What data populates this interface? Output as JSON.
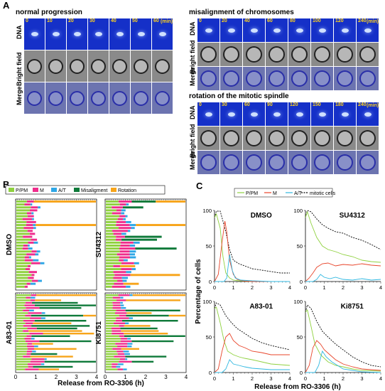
{
  "panel_a": {
    "label": "A",
    "panels": [
      {
        "title": "normal progression",
        "rows": [
          "DNA",
          "Bright field",
          "Merge"
        ],
        "times": [
          "0",
          "10",
          "20",
          "30",
          "40",
          "50",
          "60"
        ],
        "unit": "(min)"
      },
      {
        "title": "misalignment of chromosomes",
        "rows": [
          "DNA",
          "Bright field",
          "Merge"
        ],
        "times": [
          "0",
          "20",
          "40",
          "60",
          "80",
          "100",
          "120",
          "240"
        ],
        "unit": "(min)"
      },
      {
        "title": "rotation of the mitotic spindle",
        "rows": [
          "DNA",
          "Bright field",
          "Merge"
        ],
        "times": [
          "0",
          "30",
          "60",
          "90",
          "120",
          "150",
          "180",
          "240"
        ],
        "unit": "(min)"
      }
    ]
  },
  "panel_b": {
    "label": "B",
    "legend": [
      {
        "name": "P/PM",
        "color": "#8fd13f"
      },
      {
        "name": "M",
        "color": "#ef2d8c"
      },
      {
        "name": "A/T",
        "color": "#2fa7e6"
      },
      {
        "name": "Misaligment",
        "color": "#0f7a3a"
      },
      {
        "name": "Rotation",
        "color": "#f7a51b"
      }
    ],
    "conditions": [
      "DMSO",
      "SU4312",
      "A83-01",
      "Ki8751"
    ],
    "xticks": [
      "0",
      "1",
      "2",
      "3",
      "4"
    ],
    "xlabel": "Release from RO-3306 (h)"
  },
  "panel_c": {
    "label": "C",
    "legend": [
      {
        "name": "P/PM",
        "color": "#8fd13f"
      },
      {
        "name": "M",
        "color": "#e8442a"
      },
      {
        "name": "A/T",
        "color": "#2fb7e0"
      },
      {
        "name": "mitotic cells",
        "color": "#000000"
      }
    ],
    "conditions": [
      "DMSO",
      "SU4312",
      "A83-01",
      "Ki8751"
    ],
    "yticks": [
      "0",
      "50",
      "100"
    ],
    "xticks": [
      "0",
      "1",
      "2",
      "3",
      "4"
    ],
    "ylabel": "Percentage of cells",
    "xlabel": "Release from RO-3306 (h)"
  },
  "chart_data": [
    {
      "type": "line",
      "title": "DMSO",
      "xlim": [
        0,
        4
      ],
      "ylim": [
        0,
        100
      ],
      "series": [
        {
          "name": "mitotic cells",
          "x": [
            0,
            0.1,
            0.3,
            0.45,
            0.6,
            0.8,
            1.0,
            1.3,
            1.6,
            2.0,
            2.5,
            3.0,
            3.5,
            4.0
          ],
          "y": [
            90,
            99,
            99,
            85,
            70,
            45,
            30,
            25,
            22,
            18,
            16,
            14,
            12,
            12
          ]
        },
        {
          "name": "P/PM",
          "x": [
            0,
            0.1,
            0.3,
            0.45,
            0.6,
            0.8,
            1.0,
            1.3,
            2.0,
            3.0,
            4.0
          ],
          "y": [
            90,
            95,
            75,
            35,
            12,
            5,
            2,
            1,
            0,
            0,
            0
          ]
        },
        {
          "name": "M",
          "x": [
            0,
            0.2,
            0.4,
            0.55,
            0.65,
            0.8,
            1.0,
            1.2,
            1.5,
            2.0,
            3.0,
            4.0
          ],
          "y": [
            0,
            10,
            55,
            85,
            70,
            30,
            10,
            3,
            1,
            0,
            0,
            0
          ]
        },
        {
          "name": "A/T",
          "x": [
            0,
            0.5,
            0.65,
            0.8,
            0.95,
            1.1,
            1.4,
            2.0,
            3.0,
            4.0
          ],
          "y": [
            0,
            0,
            5,
            38,
            15,
            5,
            2,
            1,
            0,
            0
          ]
        }
      ]
    },
    {
      "type": "line",
      "title": "SU4312",
      "xlim": [
        0,
        4
      ],
      "ylim": [
        0,
        100
      ],
      "series": [
        {
          "name": "mitotic cells",
          "x": [
            0,
            0.1,
            0.3,
            0.6,
            0.9,
            1.2,
            1.6,
            2.0,
            2.5,
            3.0,
            3.5,
            4.0
          ],
          "y": [
            90,
            100,
            98,
            88,
            80,
            75,
            70,
            68,
            62,
            58,
            52,
            45
          ]
        },
        {
          "name": "P/PM",
          "x": [
            0,
            0.1,
            0.3,
            0.6,
            0.9,
            1.2,
            1.6,
            2.0,
            2.5,
            3.0,
            3.5,
            4.0
          ],
          "y": [
            90,
            98,
            82,
            62,
            50,
            45,
            42,
            38,
            35,
            30,
            28,
            27
          ]
        },
        {
          "name": "M",
          "x": [
            0,
            0.2,
            0.4,
            0.6,
            0.9,
            1.2,
            1.6,
            2.0,
            2.5,
            3.0,
            3.5,
            4.0
          ],
          "y": [
            0,
            5,
            12,
            20,
            25,
            26,
            22,
            24,
            23,
            25,
            23,
            22
          ]
        },
        {
          "name": "A/T",
          "x": [
            0,
            0.4,
            0.6,
            0.8,
            1.0,
            1.3,
            1.6,
            2.0,
            2.5,
            3.0,
            3.5,
            4.0
          ],
          "y": [
            0,
            0,
            3,
            10,
            6,
            4,
            6,
            3,
            2,
            4,
            2,
            3
          ]
        }
      ]
    },
    {
      "type": "line",
      "title": "A83-01",
      "xlim": [
        0,
        4
      ],
      "ylim": [
        0,
        100
      ],
      "series": [
        {
          "name": "mitotic cells",
          "x": [
            0,
            0.1,
            0.3,
            0.6,
            0.9,
            1.2,
            1.6,
            2.0,
            2.5,
            3.0,
            3.5,
            4.0
          ],
          "y": [
            90,
            98,
            95,
            80,
            70,
            62,
            55,
            48,
            42,
            38,
            35,
            32
          ]
        },
        {
          "name": "P/PM",
          "x": [
            0,
            0.1,
            0.3,
            0.5,
            0.7,
            1.0,
            1.3,
            1.6,
            2.0,
            2.5,
            3.0,
            4.0
          ],
          "y": [
            90,
            92,
            70,
            45,
            30,
            25,
            22,
            20,
            18,
            15,
            12,
            10
          ]
        },
        {
          "name": "M",
          "x": [
            0,
            0.2,
            0.4,
            0.6,
            0.8,
            1.0,
            1.3,
            1.6,
            2.0,
            2.5,
            3.0,
            4.0
          ],
          "y": [
            0,
            5,
            30,
            50,
            55,
            45,
            38,
            35,
            30,
            28,
            25,
            25
          ]
        },
        {
          "name": "A/T",
          "x": [
            0,
            0.4,
            0.6,
            0.8,
            1.0,
            1.3,
            1.6,
            2.0,
            2.5,
            3.0,
            4.0
          ],
          "y": [
            0,
            0,
            5,
            18,
            12,
            10,
            8,
            6,
            5,
            4,
            4
          ]
        }
      ]
    },
    {
      "type": "line",
      "title": "Ki8751",
      "xlim": [
        0,
        4
      ],
      "ylim": [
        0,
        100
      ],
      "series": [
        {
          "name": "mitotic cells",
          "x": [
            0,
            0.1,
            0.3,
            0.6,
            0.9,
            1.2,
            1.6,
            2.0,
            2.5,
            3.0,
            3.5,
            4.0
          ],
          "y": [
            85,
            95,
            90,
            72,
            58,
            50,
            40,
            32,
            22,
            15,
            10,
            8
          ]
        },
        {
          "name": "P/PM",
          "x": [
            0,
            0.1,
            0.3,
            0.5,
            0.8,
            1.2,
            1.6,
            2.0,
            2.5,
            3.0,
            4.0
          ],
          "y": [
            85,
            88,
            65,
            40,
            25,
            15,
            10,
            8,
            5,
            3,
            2
          ]
        },
        {
          "name": "M",
          "x": [
            0,
            0.2,
            0.4,
            0.6,
            0.8,
            1.0,
            1.3,
            1.6,
            2.0,
            2.5,
            3.0,
            4.0
          ],
          "y": [
            0,
            10,
            35,
            45,
            40,
            32,
            25,
            18,
            12,
            8,
            5,
            3
          ]
        },
        {
          "name": "A/T",
          "x": [
            0,
            0.5,
            0.7,
            0.9,
            1.1,
            1.4,
            1.7,
            2.0,
            2.5,
            3.0,
            4.0
          ],
          "y": [
            0,
            0,
            10,
            30,
            22,
            15,
            10,
            5,
            3,
            1,
            0
          ]
        }
      ]
    }
  ],
  "colors": {
    "dna": "#1530c8",
    "bf": "#8a8a8a",
    "merge": "#6c74b0",
    "grid": "#9a9a9a"
  }
}
